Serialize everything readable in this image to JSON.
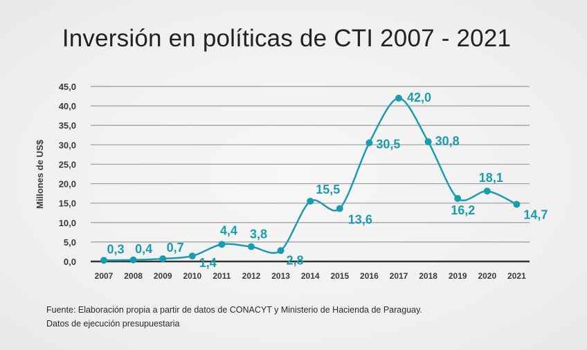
{
  "chart_data": {
    "type": "line",
    "title": "Inversión en políticas de CTI 2007 - 2021",
    "xlabel": "",
    "ylabel": "Millones de US$",
    "categories": [
      "2007",
      "2008",
      "2009",
      "2010",
      "2011",
      "2012",
      "2013",
      "2014",
      "2015",
      "2016",
      "2017",
      "2018",
      "2019",
      "2020",
      "2021"
    ],
    "series": [
      {
        "name": "Inversión",
        "values": [
          0.3,
          0.4,
          0.7,
          1.4,
          4.4,
          3.8,
          2.8,
          15.5,
          13.6,
          30.5,
          42.0,
          30.8,
          16.2,
          18.1,
          14.7
        ],
        "labels": [
          "0,3",
          "0,4",
          "0,7",
          "1,4",
          "4,4",
          "3,8",
          "2,8",
          "15,5",
          "13,6",
          "30,5",
          "42,0",
          "30,8",
          "16,2",
          "18,1",
          "14,7"
        ],
        "color": "#1a9cb0"
      }
    ],
    "ylim": [
      0,
      45
    ],
    "yticks": [
      0,
      5,
      10,
      15,
      20,
      25,
      30,
      35,
      40,
      45
    ],
    "ytick_labels": [
      "0,0",
      "5,0",
      "10,0",
      "15,0",
      "20,0",
      "25,0",
      "30,0",
      "35,0",
      "40,0",
      "45,0"
    ],
    "grid": true,
    "smooth": true,
    "legend": "none"
  },
  "footer": {
    "line1": "Fuente: Elaboración propia a partir de datos de CONACYT y Ministerio de Hacienda de Paraguay.",
    "line2": "Datos de ejecución presupuestaria"
  }
}
